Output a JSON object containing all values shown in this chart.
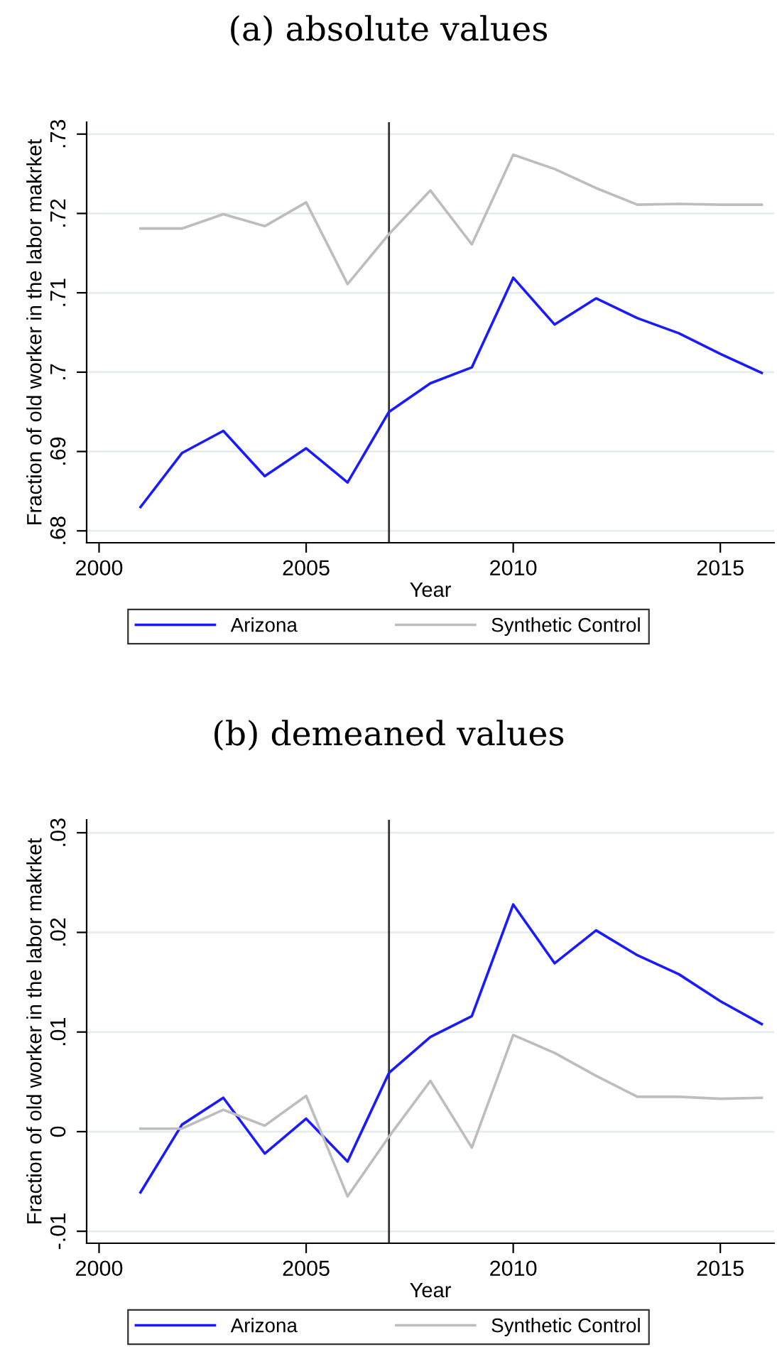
{
  "chart_data": [
    {
      "type": "line",
      "title": "(a) absolute values",
      "xlabel": "Year",
      "ylabel": "Fraction of old worker in the labor makrket",
      "x": [
        2001,
        2002,
        2003,
        2004,
        2005,
        2006,
        2007,
        2008,
        2009,
        2010,
        2011,
        2012,
        2013,
        2014,
        2015,
        2016
      ],
      "series": [
        {
          "name": "Arizona",
          "color": "#1a1aff",
          "values": [
            0.683,
            0.6898,
            0.6926,
            0.6869,
            0.6904,
            0.6861,
            0.695,
            0.6986,
            0.7006,
            0.7119,
            0.706,
            0.7093,
            0.7068,
            0.7049,
            0.7023,
            0.6999
          ]
        },
        {
          "name": "Synthetic Control",
          "color": "#bdbdbd",
          "values": [
            0.7181,
            0.7181,
            0.7199,
            0.7184,
            0.7214,
            0.7111,
            0.7174,
            0.7229,
            0.7161,
            0.7274,
            0.7256,
            0.7232,
            0.7211,
            0.7212,
            0.7211,
            0.7211
          ]
        }
      ],
      "xlim": [
        1999.7,
        2016.3
      ],
      "xticks": [
        2000,
        2005,
        2010,
        2015
      ],
      "ylim": [
        0.6785,
        0.7315
      ],
      "yticks": [
        {
          "value": 0.68,
          "label": ".68"
        },
        {
          "value": 0.69,
          "label": ".69"
        },
        {
          "value": 0.7,
          "label": ".7"
        },
        {
          "value": 0.71,
          "label": ".71"
        },
        {
          "value": 0.72,
          "label": ".72"
        },
        {
          "value": 0.73,
          "label": ".73"
        }
      ],
      "ref_lines": [
        {
          "axis": "x",
          "value": 2007,
          "color": "#333333"
        }
      ],
      "grid": "y",
      "legend": "bottom"
    },
    {
      "type": "line",
      "title": "(b) demeaned values",
      "xlabel": "Year",
      "ylabel": "Fraction of old worker in the labor makrket",
      "x": [
        2001,
        2002,
        2003,
        2004,
        2005,
        2006,
        2007,
        2008,
        2009,
        2010,
        2011,
        2012,
        2013,
        2014,
        2015,
        2016
      ],
      "series": [
        {
          "name": "Arizona",
          "color": "#1a1aff",
          "values": [
            -0.0061,
            0.0007,
            0.0034,
            -0.0022,
            0.0013,
            -0.003,
            0.0059,
            0.0095,
            0.0116,
            0.0228,
            0.0169,
            0.0202,
            0.0177,
            0.0158,
            0.0131,
            0.0108
          ]
        },
        {
          "name": "Synthetic Control",
          "color": "#bdbdbd",
          "values": [
            0.0003,
            0.0003,
            0.0022,
            0.0006,
            0.0036,
            -0.0065,
            -0.0005,
            0.0051,
            -0.0016,
            0.0097,
            0.0079,
            0.0056,
            0.0035,
            0.0035,
            0.0033,
            0.0034
          ]
        }
      ],
      "xlim": [
        1999.7,
        2016.3
      ],
      "xticks": [
        2000,
        2005,
        2010,
        2015
      ],
      "ylim": [
        -0.0112,
        0.0313
      ],
      "yticks": [
        {
          "value": -0.01,
          "label": "-.01"
        },
        {
          "value": 0,
          "label": "0"
        },
        {
          "value": 0.01,
          "label": ".01"
        },
        {
          "value": 0.02,
          "label": ".02"
        },
        {
          "value": 0.03,
          "label": ".03"
        }
      ],
      "ref_lines": [
        {
          "axis": "x",
          "value": 2007,
          "color": "#333333"
        }
      ],
      "grid": "y",
      "legend": "bottom"
    }
  ]
}
